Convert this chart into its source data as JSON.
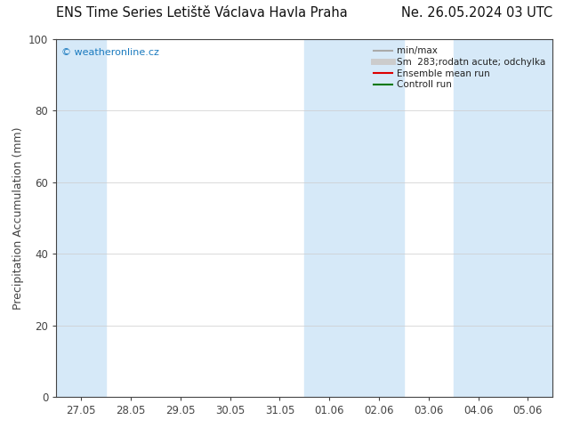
{
  "title_left": "ENS Time Series Letiště Václava Havla Praha",
  "title_right": "Ne. 26.05.2024 03 UTC",
  "ylabel": "Precipitation Accumulation (mm)",
  "ylim": [
    0,
    100
  ],
  "yticks": [
    0,
    20,
    40,
    60,
    80,
    100
  ],
  "x_labels": [
    "27.05",
    "28.05",
    "29.05",
    "30.05",
    "31.05",
    "01.06",
    "02.06",
    "03.06",
    "04.06",
    "05.06"
  ],
  "x_positions": [
    0,
    1,
    2,
    3,
    4,
    5,
    6,
    7,
    8,
    9
  ],
  "shade_bands": [
    {
      "xmin": -0.5,
      "xmax": 0.5
    },
    {
      "xmin": 4.5,
      "xmax": 6.5
    },
    {
      "xmin": 7.5,
      "xmax": 9.5
    }
  ],
  "shade_color": "#d6e9f8",
  "background_color": "#ffffff",
  "watermark": "© weatheronline.cz",
  "watermark_color": "#1a7abf",
  "legend_items": [
    {
      "label": "min/max",
      "color": "#aaaaaa",
      "lw": 1.5
    },
    {
      "label": "Sm  283;rodatn acute; odchylka",
      "color": "#cccccc",
      "lw": 5
    },
    {
      "label": "Ensemble mean run",
      "color": "#dd0000",
      "lw": 1.5
    },
    {
      "label": "Controll run",
      "color": "#007700",
      "lw": 1.5
    }
  ],
  "title_fontsize": 10.5,
  "tick_fontsize": 8.5,
  "ylabel_fontsize": 9,
  "grid_color": "#cccccc",
  "axis_color": "#444444",
  "legend_fontsize": 7.5
}
